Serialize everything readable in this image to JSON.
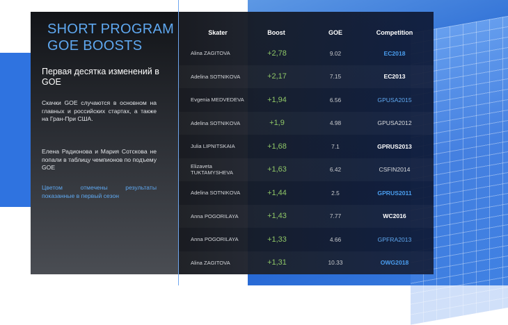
{
  "slide": {
    "title": "SHORT PROGRAM GOE BOOSTS",
    "subtitle": "Первая десятка изменений в GOE",
    "paragraph_1": "Скачки GOE случаются в основном на главных и российских стартах, а также на Гран-При США.",
    "paragraph_2": "Елена Радионова и Мария Сотскова не попали в таблицу чемпионов по подъему GOE",
    "paragraph_3": "Цветом отмечены результаты показанные в первый сезон"
  },
  "table": {
    "headers": {
      "skater": "Skater",
      "boost": "Boost",
      "goe": "GOE",
      "competition": "Competition"
    },
    "colors": {
      "boost": "#8fc767",
      "highlight_bold": "#4a9ef0",
      "highlight_light": "#5fa8f0",
      "normal": "#ffffff",
      "normal_light": "#d8dadd"
    },
    "rows": [
      {
        "skater": "Alina ZAGITOVA",
        "boost": "+2,78",
        "goe": "9.02",
        "competition": "EC2018",
        "comp_color": "#4a9ef0",
        "comp_bold": true
      },
      {
        "skater": "Adelina SOTNIKOVA",
        "boost": "+2,17",
        "goe": "7.15",
        "competition": "EC2013",
        "comp_color": "#ffffff",
        "comp_bold": true
      },
      {
        "skater": "Evgenia MEDVEDEVA",
        "boost": "+1,94",
        "goe": "6.56",
        "competition": "GPUSA2015",
        "comp_color": "#5fa8f0",
        "comp_bold": false
      },
      {
        "skater": "Adelina SOTNIKOVA",
        "boost": "+1,9",
        "goe": "4.98",
        "competition": "GPUSA2012",
        "comp_color": "#d8dadd",
        "comp_bold": false
      },
      {
        "skater": "Julia LIPNITSKAIA",
        "boost": "+1,68",
        "goe": "7.1",
        "competition": "GPRUS2013",
        "comp_color": "#ffffff",
        "comp_bold": true
      },
      {
        "skater": "Elizaveta TUKTAMYSHEVA",
        "boost": "+1,63",
        "goe": "6.42",
        "competition": "CSFIN2014",
        "comp_color": "#d8dadd",
        "comp_bold": false
      },
      {
        "skater": "Adelina SOTNIKOVA",
        "boost": "+1,44",
        "goe": "2.5",
        "competition": "GPRUS2011",
        "comp_color": "#4a9ef0",
        "comp_bold": true
      },
      {
        "skater": "Anna POGORILAYA",
        "boost": "+1,43",
        "goe": "7.77",
        "competition": "WC2016",
        "comp_color": "#ffffff",
        "comp_bold": true
      },
      {
        "skater": "Anna POGORILAYA",
        "boost": "+1,33",
        "goe": "4.66",
        "competition": "GPFRA2013",
        "comp_color": "#5fa8f0",
        "comp_bold": false
      },
      {
        "skater": "Alina ZAGITOVA",
        "boost": "+1,31",
        "goe": "10.33",
        "competition": "OWG2018",
        "comp_color": "#4a9ef0",
        "comp_bold": true
      }
    ]
  }
}
